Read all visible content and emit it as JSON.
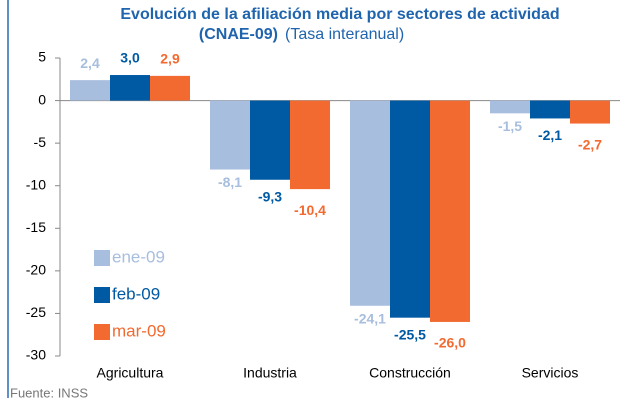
{
  "chart_data": {
    "type": "bar",
    "title": "Evolución de la afiliación media por sectores de actividad",
    "title_2": "(CNAE-09)",
    "subtitle": "(Tasa interanual)",
    "categories": [
      "Agricultura",
      "Industria",
      "Construcción",
      "Servicios"
    ],
    "series": [
      {
        "name": "ene-09",
        "color": "#a8bede",
        "values": [
          2.4,
          -8.1,
          -24.1,
          -1.5
        ],
        "value_labels": [
          "2,4",
          "-8,1",
          "-24,1",
          "-1,5"
        ]
      },
      {
        "name": "feb-09",
        "color": "#0059a3",
        "values": [
          3.0,
          -9.3,
          -25.5,
          -2.1
        ],
        "value_labels": [
          "3,0",
          "-9,3",
          "-25,5",
          "-2,1"
        ]
      },
      {
        "name": "mar-09",
        "color": "#f26a30",
        "values": [
          2.9,
          -10.4,
          -26.0,
          -2.7
        ],
        "value_labels": [
          "2,9",
          "-10,4",
          "-26,0",
          "-2,7"
        ]
      }
    ],
    "ylim": [
      -30,
      5
    ],
    "yticks": [
      -30,
      -25,
      -20,
      -15,
      -10,
      -5,
      0,
      5
    ],
    "legend": "left",
    "source": "Fuente: INSS"
  }
}
